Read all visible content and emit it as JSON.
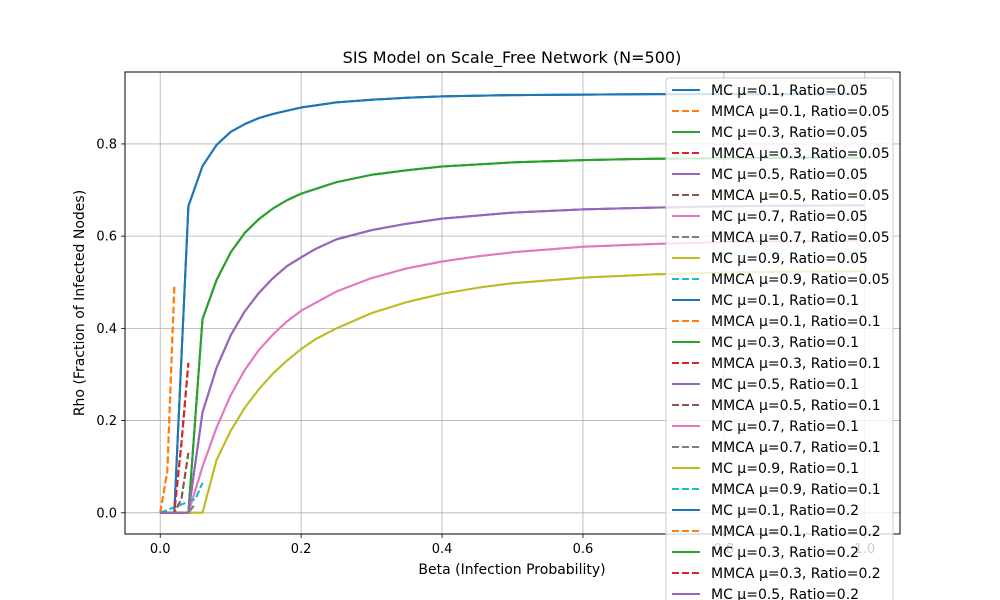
{
  "chart_data": {
    "type": "line",
    "title": "SIS Model on Scale_Free Network (N=500)",
    "xlabel": "Beta (Infection Probability)",
    "ylabel": "Rho (Fraction of Infected Nodes)",
    "xlim": [
      -0.05,
      1.05
    ],
    "ylim": [
      -0.046,
      0.956
    ],
    "xticks": [
      0.0,
      0.2,
      0.4,
      0.6,
      0.8,
      1.0
    ],
    "xtick_labels": [
      "0.0",
      "0.2",
      "0.4",
      "0.6",
      "0.8",
      "1.0"
    ],
    "yticks": [
      0.0,
      0.2,
      0.4,
      0.6,
      0.8
    ],
    "ytick_labels": [
      "0.0",
      "0.2",
      "0.4",
      "0.6",
      "0.8"
    ],
    "grid": true,
    "legend_position": "upper right",
    "series": [
      {
        "name": "MC μ=0.1, Ratio=0.05",
        "color": "#1f77b4",
        "dash": "solid",
        "x": [
          0.0,
          0.02,
          0.04,
          0.06,
          0.08,
          0.1,
          0.12,
          0.14,
          0.16,
          0.18,
          0.2,
          0.25,
          0.3,
          0.35,
          0.4,
          0.5,
          0.6,
          0.7,
          0.8,
          0.9,
          1.0
        ],
        "y": [
          0.0,
          0.0,
          0.665,
          0.752,
          0.798,
          0.826,
          0.843,
          0.856,
          0.865,
          0.872,
          0.879,
          0.89,
          0.896,
          0.9,
          0.903,
          0.906,
          0.907,
          0.908,
          0.908,
          0.908,
          0.908
        ]
      },
      {
        "name": "MMCA μ=0.1, Ratio=0.05",
        "color": "#ff7f0e",
        "dash": "dashed",
        "x": [
          0.0,
          0.01,
          0.02
        ],
        "y": [
          0.0,
          0.09,
          0.49
        ]
      },
      {
        "name": "MC μ=0.3, Ratio=0.05",
        "color": "#2ca02c",
        "dash": "solid",
        "x": [
          0.0,
          0.02,
          0.04,
          0.06,
          0.08,
          0.1,
          0.12,
          0.14,
          0.16,
          0.18,
          0.2,
          0.25,
          0.3,
          0.35,
          0.4,
          0.5,
          0.6,
          0.7,
          0.8,
          0.9,
          1.0
        ],
        "y": [
          0.0,
          0.0,
          0.0,
          0.42,
          0.505,
          0.565,
          0.607,
          0.637,
          0.66,
          0.678,
          0.692,
          0.717,
          0.733,
          0.743,
          0.751,
          0.76,
          0.765,
          0.768,
          0.769,
          0.77,
          0.77
        ]
      },
      {
        "name": "MMCA μ=0.3, Ratio=0.05",
        "color": "#d62728",
        "dash": "dashed",
        "x": [
          0.0,
          0.02,
          0.03,
          0.04
        ],
        "y": [
          0.0,
          0.0,
          0.15,
          0.325
        ]
      },
      {
        "name": "MC μ=0.5, Ratio=0.05",
        "color": "#9467bd",
        "dash": "solid",
        "x": [
          0.0,
          0.04,
          0.06,
          0.08,
          0.1,
          0.12,
          0.14,
          0.16,
          0.18,
          0.2,
          0.22,
          0.25,
          0.3,
          0.35,
          0.4,
          0.5,
          0.6,
          0.7,
          0.8,
          0.9,
          1.0
        ],
        "y": [
          0.0,
          0.0,
          0.218,
          0.315,
          0.385,
          0.437,
          0.477,
          0.509,
          0.535,
          0.554,
          0.572,
          0.593,
          0.613,
          0.627,
          0.638,
          0.651,
          0.658,
          0.662,
          0.665,
          0.666,
          0.667
        ]
      },
      {
        "name": "MMCA μ=0.5, Ratio=0.05",
        "color": "#8c564b",
        "dash": "dashed",
        "x": [
          0.0,
          0.02,
          0.03,
          0.04
        ],
        "y": [
          0.0,
          0.0,
          0.03,
          0.13
        ]
      },
      {
        "name": "MC μ=0.7, Ratio=0.05",
        "color": "#e377c2",
        "dash": "solid",
        "x": [
          0.0,
          0.04,
          0.06,
          0.08,
          0.1,
          0.12,
          0.14,
          0.16,
          0.18,
          0.2,
          0.25,
          0.3,
          0.35,
          0.4,
          0.45,
          0.5,
          0.6,
          0.7,
          0.8,
          0.9,
          1.0
        ],
        "y": [
          0.0,
          0.0,
          0.1,
          0.185,
          0.255,
          0.31,
          0.353,
          0.387,
          0.415,
          0.438,
          0.48,
          0.509,
          0.53,
          0.545,
          0.556,
          0.565,
          0.577,
          0.583,
          0.587,
          0.589,
          0.59
        ]
      },
      {
        "name": "MMCA μ=0.7, Ratio=0.05",
        "color": "#7f7f7f",
        "dash": "dashed",
        "x": [
          0.0,
          0.04,
          0.05
        ],
        "y": [
          0.0,
          0.0,
          0.02
        ]
      },
      {
        "name": "MC μ=0.9, Ratio=0.05",
        "color": "#bcbd22",
        "dash": "solid",
        "x": [
          0.0,
          0.06,
          0.08,
          0.1,
          0.12,
          0.14,
          0.16,
          0.18,
          0.2,
          0.22,
          0.25,
          0.3,
          0.35,
          0.4,
          0.45,
          0.5,
          0.6,
          0.7,
          0.8,
          0.9,
          1.0
        ],
        "y": [
          0.0,
          0.0,
          0.115,
          0.178,
          0.228,
          0.268,
          0.302,
          0.33,
          0.355,
          0.376,
          0.4,
          0.433,
          0.457,
          0.475,
          0.488,
          0.498,
          0.51,
          0.517,
          0.521,
          0.523,
          0.524
        ]
      },
      {
        "name": "MMCA μ=0.9, Ratio=0.05",
        "color": "#17becf",
        "dash": "dashed",
        "x": [
          0.0,
          0.05,
          0.06
        ],
        "y": [
          0.0,
          0.03,
          0.065
        ]
      },
      {
        "name": "MC μ=0.1, Ratio=0.1",
        "color": "#1f77b4",
        "dash": "solid",
        "x": [
          0.0,
          0.02,
          0.04,
          0.06,
          0.08,
          0.1,
          0.12,
          0.14,
          0.16,
          0.18,
          0.2,
          0.25,
          0.3,
          0.35,
          0.4,
          0.5,
          0.6,
          0.7,
          0.8,
          0.9,
          1.0
        ],
        "y": [
          0.0,
          0.0,
          0.665,
          0.752,
          0.798,
          0.826,
          0.843,
          0.856,
          0.865,
          0.872,
          0.879,
          0.89,
          0.896,
          0.9,
          0.903,
          0.906,
          0.907,
          0.908,
          0.908,
          0.908,
          0.908
        ]
      },
      {
        "name": "MMCA μ=0.1, Ratio=0.1",
        "color": "#ff7f0e",
        "dash": "dashed",
        "x": [
          0.0,
          0.01,
          0.02
        ],
        "y": [
          0.0,
          0.09,
          0.49
        ]
      },
      {
        "name": "MC μ=0.3, Ratio=0.1",
        "color": "#2ca02c",
        "dash": "solid",
        "x": [
          0.0,
          0.02,
          0.04,
          0.06,
          0.08,
          0.1,
          0.12,
          0.14,
          0.16,
          0.18,
          0.2,
          0.25,
          0.3,
          0.35,
          0.4,
          0.5,
          0.6,
          0.7,
          0.8,
          0.9,
          1.0
        ],
        "y": [
          0.0,
          0.0,
          0.0,
          0.42,
          0.505,
          0.565,
          0.607,
          0.637,
          0.66,
          0.678,
          0.692,
          0.717,
          0.733,
          0.743,
          0.751,
          0.76,
          0.765,
          0.768,
          0.769,
          0.77,
          0.77
        ]
      },
      {
        "name": "MMCA μ=0.3, Ratio=0.1",
        "color": "#d62728",
        "dash": "dashed",
        "x": [
          0.0,
          0.02,
          0.03,
          0.04
        ],
        "y": [
          0.0,
          0.0,
          0.15,
          0.325
        ]
      },
      {
        "name": "MC μ=0.5, Ratio=0.1",
        "color": "#9467bd",
        "dash": "solid",
        "x": [
          0.0,
          0.04,
          0.06,
          0.08,
          0.1,
          0.12,
          0.14,
          0.16,
          0.18,
          0.2,
          0.22,
          0.25,
          0.3,
          0.35,
          0.4,
          0.5,
          0.6,
          0.7,
          0.8,
          0.9,
          1.0
        ],
        "y": [
          0.0,
          0.0,
          0.218,
          0.315,
          0.385,
          0.437,
          0.477,
          0.509,
          0.535,
          0.554,
          0.572,
          0.593,
          0.613,
          0.627,
          0.638,
          0.651,
          0.658,
          0.662,
          0.665,
          0.666,
          0.667
        ]
      },
      {
        "name": "MMCA μ=0.5, Ratio=0.1",
        "color": "#8c564b",
        "dash": "dashed",
        "x": [
          0.0,
          0.02,
          0.03,
          0.04
        ],
        "y": [
          0.0,
          0.0,
          0.03,
          0.13
        ]
      },
      {
        "name": "MC μ=0.7, Ratio=0.1",
        "color": "#e377c2",
        "dash": "solid",
        "x": [
          0.0,
          0.04,
          0.06,
          0.08,
          0.1,
          0.12,
          0.14,
          0.16,
          0.18,
          0.2,
          0.25,
          0.3,
          0.35,
          0.4,
          0.45,
          0.5,
          0.6,
          0.7,
          0.8,
          0.9,
          1.0
        ],
        "y": [
          0.0,
          0.0,
          0.1,
          0.185,
          0.255,
          0.31,
          0.353,
          0.387,
          0.415,
          0.438,
          0.48,
          0.509,
          0.53,
          0.545,
          0.556,
          0.565,
          0.577,
          0.583,
          0.587,
          0.589,
          0.59
        ]
      },
      {
        "name": "MMCA μ=0.7, Ratio=0.1",
        "color": "#7f7f7f",
        "dash": "dashed",
        "x": [
          0.0,
          0.04,
          0.05
        ],
        "y": [
          0.0,
          0.0,
          0.02
        ]
      },
      {
        "name": "MC μ=0.9, Ratio=0.1",
        "color": "#bcbd22",
        "dash": "solid",
        "x": [
          0.0,
          0.06,
          0.08,
          0.1,
          0.12,
          0.14,
          0.16,
          0.18,
          0.2,
          0.22,
          0.25,
          0.3,
          0.35,
          0.4,
          0.45,
          0.5,
          0.6,
          0.7,
          0.8,
          0.9,
          1.0
        ],
        "y": [
          0.0,
          0.0,
          0.115,
          0.178,
          0.228,
          0.268,
          0.302,
          0.33,
          0.355,
          0.376,
          0.4,
          0.433,
          0.457,
          0.475,
          0.488,
          0.498,
          0.51,
          0.517,
          0.521,
          0.523,
          0.524
        ]
      },
      {
        "name": "MMCA μ=0.9, Ratio=0.1",
        "color": "#17becf",
        "dash": "dashed",
        "x": [
          0.0,
          0.05,
          0.06
        ],
        "y": [
          0.0,
          0.03,
          0.065
        ]
      },
      {
        "name": "MC μ=0.1, Ratio=0.2",
        "color": "#1f77b4",
        "dash": "solid",
        "x": [
          0.0,
          0.02,
          0.04,
          0.06,
          0.08,
          0.1,
          0.12,
          0.14,
          0.16,
          0.18,
          0.2,
          0.25,
          0.3,
          0.35,
          0.4,
          0.5,
          0.6,
          0.7,
          0.8,
          0.9,
          1.0
        ],
        "y": [
          0.0,
          0.0,
          0.665,
          0.752,
          0.798,
          0.826,
          0.843,
          0.856,
          0.865,
          0.872,
          0.879,
          0.89,
          0.896,
          0.9,
          0.903,
          0.906,
          0.907,
          0.908,
          0.908,
          0.908,
          0.908
        ]
      },
      {
        "name": "MMCA μ=0.1, Ratio=0.2",
        "color": "#ff7f0e",
        "dash": "dashed",
        "x": [
          0.0,
          0.01,
          0.02
        ],
        "y": [
          0.0,
          0.09,
          0.49
        ]
      },
      {
        "name": "MC μ=0.3, Ratio=0.2",
        "color": "#2ca02c",
        "dash": "solid",
        "x": [
          0.0,
          0.02,
          0.04,
          0.06,
          0.08,
          0.1,
          0.12,
          0.14,
          0.16,
          0.18,
          0.2,
          0.25,
          0.3,
          0.35,
          0.4,
          0.5,
          0.6,
          0.7,
          0.8,
          0.9,
          1.0
        ],
        "y": [
          0.0,
          0.0,
          0.0,
          0.42,
          0.505,
          0.565,
          0.607,
          0.637,
          0.66,
          0.678,
          0.692,
          0.717,
          0.733,
          0.743,
          0.751,
          0.76,
          0.765,
          0.768,
          0.769,
          0.77,
          0.77
        ]
      },
      {
        "name": "MMCA μ=0.3, Ratio=0.2",
        "color": "#d62728",
        "dash": "dashed",
        "x": [
          0.0,
          0.02,
          0.03,
          0.04
        ],
        "y": [
          0.0,
          0.0,
          0.15,
          0.325
        ]
      },
      {
        "name": "MC μ=0.5, Ratio=0.2",
        "color": "#9467bd",
        "dash": "solid",
        "x": [
          0.0,
          0.04,
          0.06,
          0.08,
          0.1,
          0.12,
          0.14,
          0.16,
          0.18,
          0.2,
          0.22,
          0.25,
          0.3,
          0.35,
          0.4,
          0.5,
          0.6,
          0.7,
          0.8,
          0.9,
          1.0
        ],
        "y": [
          0.0,
          0.0,
          0.218,
          0.315,
          0.385,
          0.437,
          0.477,
          0.509,
          0.535,
          0.554,
          0.572,
          0.593,
          0.613,
          0.627,
          0.638,
          0.651,
          0.658,
          0.662,
          0.665,
          0.666,
          0.667
        ]
      }
    ]
  }
}
